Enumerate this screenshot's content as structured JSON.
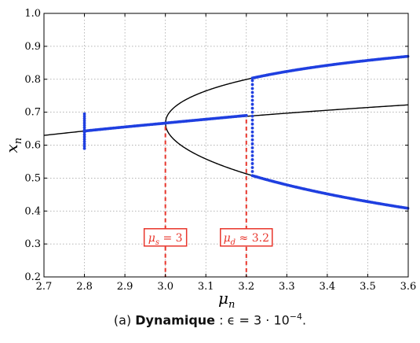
{
  "chart_data": {
    "type": "line",
    "xlabel": "μ",
    "xlabel_sub": "n",
    "ylabel": "x",
    "ylabel_sub": "n",
    "xlim": [
      2.7,
      3.6
    ],
    "ylim": [
      0.2,
      1.0
    ],
    "x_ticks": [
      "2.7",
      "2.8",
      "2.9",
      "3.0",
      "3.1",
      "3.2",
      "3.3",
      "3.4",
      "3.5",
      "3.6"
    ],
    "y_ticks": [
      "0.2",
      "0.3",
      "0.4",
      "0.5",
      "0.6",
      "0.7",
      "0.8",
      "0.9",
      "1.0"
    ],
    "grid": true,
    "curves": {
      "fixed_point": "x = 1 - 1/mu",
      "period_two_branch": "x = (mu + 1 ± sqrt((mu + 1)(mu - 3))) / (2 mu)"
    },
    "trajectory": {
      "color": "#1f3fe0",
      "start_spread": {
        "mu": 2.8,
        "y_range": [
          0.59,
          0.7
        ]
      },
      "delayed_segment": {
        "from": [
          3.0,
          0.667
        ],
        "to": [
          3.2,
          0.69
        ]
      },
      "jump": {
        "mu": 3.215,
        "y_range": [
          0.52,
          0.8
        ]
      },
      "upper_branch_from": 3.215,
      "lower_branch_from": 3.215
    },
    "annotations": [
      {
        "name": "mu-s",
        "x": 3.0,
        "label_main": "μ",
        "label_sub": "s",
        "label_rest": " = 3",
        "box_y": 0.32
      },
      {
        "name": "mu-d",
        "x": 3.2,
        "label_main": "μ",
        "label_sub": "d",
        "label_rest": " ≈ 3.2",
        "box_y": 0.32
      }
    ],
    "annotation_color": "#e8352b"
  },
  "caption": {
    "prefix": "(a) ",
    "bold": "Dynamique",
    "rest": " : ϵ = 3 · 10",
    "exponent": "−4",
    "tail": "."
  }
}
